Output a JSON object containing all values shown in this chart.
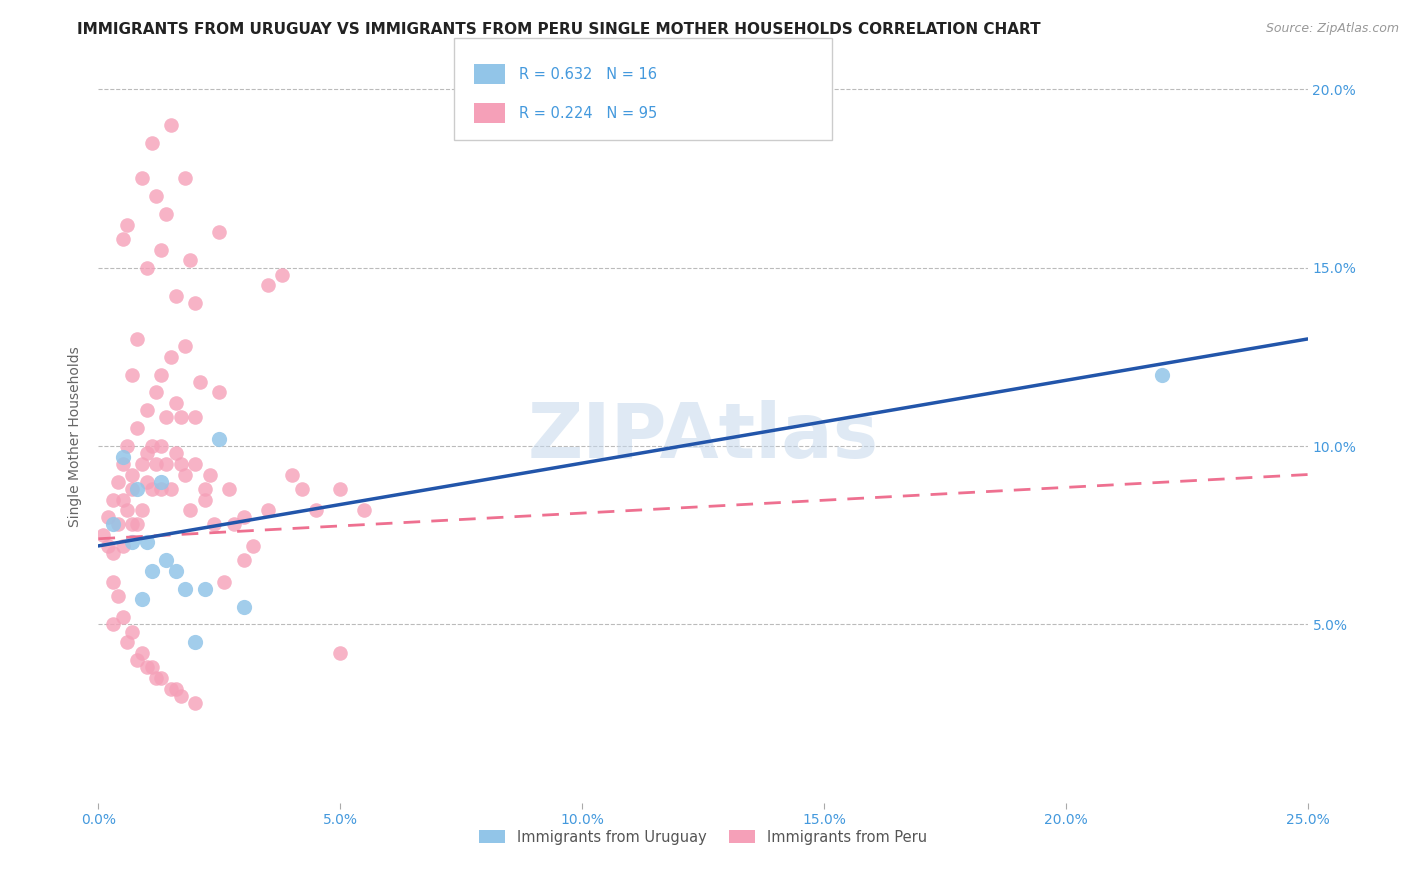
{
  "title": "IMMIGRANTS FROM URUGUAY VS IMMIGRANTS FROM PERU SINGLE MOTHER HOUSEHOLDS CORRELATION CHART",
  "source": "Source: ZipAtlas.com",
  "ylabel": "Single Mother Households",
  "watermark": "ZIPAtlas",
  "legend_uruguay": "Immigrants from Uruguay",
  "legend_peru": "Immigrants from Peru",
  "R_uruguay": 0.632,
  "N_uruguay": 16,
  "R_peru": 0.224,
  "N_peru": 95,
  "xlim": [
    0.0,
    0.25
  ],
  "ylim": [
    0.0,
    0.205
  ],
  "xticks": [
    0.0,
    0.05,
    0.1,
    0.15,
    0.2,
    0.25
  ],
  "yticks": [
    0.05,
    0.1,
    0.15,
    0.2
  ],
  "color_uruguay": "#92C5E8",
  "color_peru": "#F5A0B8",
  "line_color_uruguay": "#2255AA",
  "line_color_peru": "#EE7090",
  "background_color": "#FFFFFF",
  "grid_color": "#BBBBBB",
  "axis_color": "#4499DD",
  "title_fontsize": 11,
  "source_fontsize": 9,
  "label_fontsize": 10,
  "tick_fontsize": 10,
  "watermark_color": "#C5D8EC",
  "uruguay_x": [
    0.003,
    0.005,
    0.007,
    0.008,
    0.009,
    0.01,
    0.011,
    0.013,
    0.014,
    0.016,
    0.018,
    0.02,
    0.022,
    0.025,
    0.03,
    0.22
  ],
  "uruguay_y": [
    0.078,
    0.097,
    0.073,
    0.088,
    0.057,
    0.073,
    0.065,
    0.09,
    0.068,
    0.065,
    0.06,
    0.045,
    0.06,
    0.102,
    0.055,
    0.12
  ],
  "peru_x": [
    0.001,
    0.002,
    0.002,
    0.003,
    0.003,
    0.004,
    0.004,
    0.005,
    0.005,
    0.005,
    0.006,
    0.006,
    0.007,
    0.007,
    0.007,
    0.008,
    0.008,
    0.009,
    0.009,
    0.01,
    0.01,
    0.01,
    0.011,
    0.011,
    0.012,
    0.012,
    0.013,
    0.013,
    0.013,
    0.014,
    0.014,
    0.015,
    0.015,
    0.016,
    0.016,
    0.017,
    0.017,
    0.018,
    0.018,
    0.019,
    0.02,
    0.02,
    0.021,
    0.022,
    0.023,
    0.024,
    0.025,
    0.026,
    0.027,
    0.028,
    0.03,
    0.032,
    0.035,
    0.035,
    0.038,
    0.04,
    0.042,
    0.045,
    0.05,
    0.05,
    0.055,
    0.007,
    0.008,
    0.01,
    0.012,
    0.015,
    0.018,
    0.02,
    0.025,
    0.03,
    0.005,
    0.006,
    0.009,
    0.011,
    0.013,
    0.014,
    0.016,
    0.019,
    0.022,
    0.003,
    0.004,
    0.006,
    0.008,
    0.01,
    0.012,
    0.015,
    0.017,
    0.02,
    0.003,
    0.005,
    0.007,
    0.009,
    0.011,
    0.013,
    0.016
  ],
  "peru_y": [
    0.075,
    0.08,
    0.072,
    0.085,
    0.07,
    0.09,
    0.078,
    0.095,
    0.085,
    0.072,
    0.1,
    0.082,
    0.088,
    0.078,
    0.092,
    0.105,
    0.078,
    0.095,
    0.082,
    0.11,
    0.09,
    0.098,
    0.088,
    0.1,
    0.095,
    0.115,
    0.1,
    0.12,
    0.088,
    0.108,
    0.095,
    0.125,
    0.088,
    0.112,
    0.098,
    0.095,
    0.108,
    0.092,
    0.128,
    0.082,
    0.095,
    0.108,
    0.118,
    0.088,
    0.092,
    0.078,
    0.115,
    0.062,
    0.088,
    0.078,
    0.068,
    0.072,
    0.082,
    0.145,
    0.148,
    0.092,
    0.088,
    0.082,
    0.088,
    0.042,
    0.082,
    0.12,
    0.13,
    0.15,
    0.17,
    0.19,
    0.175,
    0.14,
    0.16,
    0.08,
    0.158,
    0.162,
    0.175,
    0.185,
    0.155,
    0.165,
    0.142,
    0.152,
    0.085,
    0.062,
    0.058,
    0.045,
    0.04,
    0.038,
    0.035,
    0.032,
    0.03,
    0.028,
    0.05,
    0.052,
    0.048,
    0.042,
    0.038,
    0.035,
    0.032
  ]
}
